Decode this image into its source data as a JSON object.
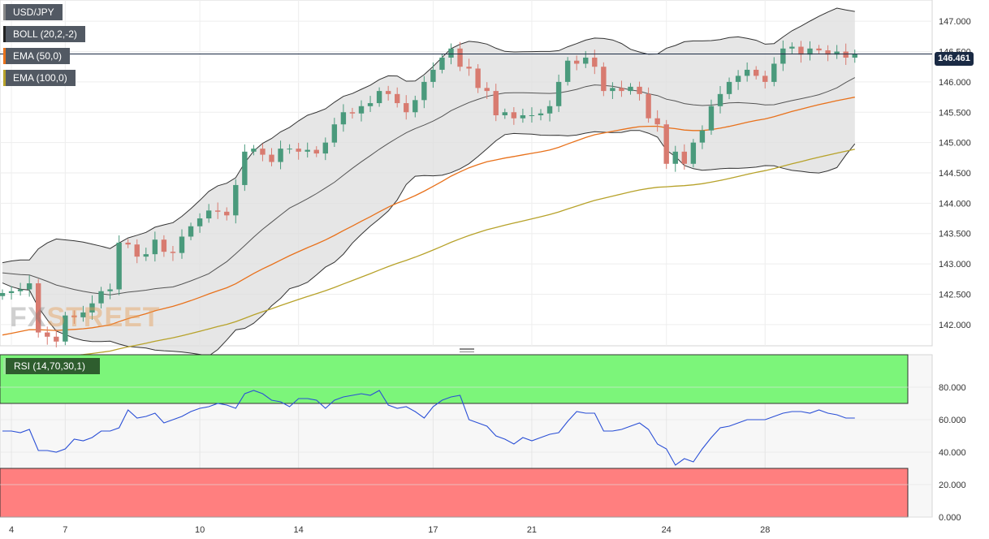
{
  "indicators": {
    "symbol": "USD/JPY",
    "boll": "BOLL (20,2,-2)",
    "ema50": "EMA (50,0)",
    "ema100": "EMA (100,0)",
    "rsi": "RSI (14,70,30,1)"
  },
  "last_price": "146.461",
  "logo": {
    "part1": "FX",
    "part2": "STREET"
  },
  "colors": {
    "up": "#4a9a7c",
    "down": "#d87b70",
    "ema50": "#e8711b",
    "ema100": "#b7a22a",
    "bands_fill": "#dddddd",
    "rsi_line": "#2a4fd6",
    "overbought": "#7cf57a",
    "oversold": "#ff7f7f"
  },
  "chart_data": [
    {
      "type": "candlestick",
      "title": "",
      "x_ticks": [
        "4",
        "7",
        "10",
        "14",
        "17",
        "21",
        "24",
        "28"
      ],
      "x_tick_index": [
        1,
        7,
        22,
        33,
        48,
        59,
        74,
        85
      ],
      "y_ticks": [
        "147.000",
        "146.500",
        "146.000",
        "145.500",
        "145.000",
        "144.500",
        "144.000",
        "143.500",
        "143.000",
        "142.500",
        "142.000"
      ],
      "ylim": [
        141.65,
        147.35
      ],
      "closes": [
        142.52,
        142.55,
        142.58,
        142.68,
        141.87,
        141.8,
        141.72,
        142.15,
        142.12,
        142.2,
        142.35,
        142.55,
        142.58,
        143.35,
        143.32,
        143.12,
        143.16,
        143.4,
        143.2,
        143.18,
        143.45,
        143.62,
        143.75,
        143.88,
        143.86,
        143.8,
        144.3,
        144.85,
        144.9,
        144.8,
        144.68,
        144.9,
        144.9,
        144.85,
        144.88,
        144.82,
        145.0,
        145.3,
        145.5,
        145.48,
        145.6,
        145.65,
        145.85,
        145.8,
        145.65,
        145.5,
        145.7,
        146.0,
        146.2,
        146.4,
        146.55,
        146.25,
        146.22,
        145.9,
        145.85,
        145.45,
        145.5,
        145.4,
        145.45,
        145.45,
        145.48,
        145.6,
        146.0,
        146.35,
        146.3,
        146.4,
        146.25,
        145.85,
        145.9,
        145.85,
        145.92,
        145.8,
        145.4,
        145.3,
        144.65,
        144.85,
        144.65,
        145.0,
        145.2,
        145.6,
        145.8,
        146.0,
        146.1,
        146.2,
        146.1,
        146.0,
        146.3,
        146.55,
        146.58,
        146.45,
        146.55,
        146.52,
        146.45,
        146.5,
        146.4,
        146.46
      ]
    },
    {
      "type": "line",
      "title": "",
      "series_name": "RSI",
      "y_ticks": [
        "80.000",
        "60.000",
        "40.000",
        "20.000",
        "0.000"
      ],
      "ylim": [
        0,
        100
      ],
      "overbought": 70,
      "oversold": 30,
      "values": [
        53,
        53,
        52,
        54,
        41,
        41,
        40,
        42,
        48,
        47,
        49,
        53,
        53,
        55,
        66,
        61,
        62,
        64,
        58,
        60,
        62,
        65,
        67,
        68,
        70,
        69,
        67,
        76,
        78,
        76,
        72,
        71,
        68,
        73,
        73,
        72,
        67,
        72,
        74,
        75,
        76,
        75,
        78,
        69,
        67,
        68,
        65,
        61,
        68,
        72,
        74,
        75,
        60,
        58,
        56,
        50,
        48,
        45,
        49,
        47,
        49,
        51,
        52,
        59,
        65,
        64,
        64,
        53,
        53,
        54,
        56,
        58,
        54,
        45,
        42,
        32,
        36,
        34,
        42,
        49,
        55,
        56,
        58,
        60,
        60,
        60,
        62,
        64,
        65,
        65,
        64,
        66,
        64,
        63,
        61,
        61
      ]
    }
  ]
}
